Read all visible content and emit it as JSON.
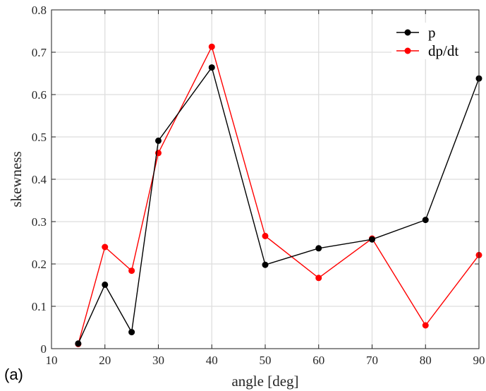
{
  "panel_label": "(a)",
  "chart_data": {
    "type": "line",
    "xlabel": "angle [deg]",
    "ylabel": "skewness",
    "xlim": [
      10,
      90
    ],
    "ylim": [
      0,
      0.8
    ],
    "xticks": [
      10,
      20,
      30,
      40,
      50,
      60,
      70,
      80,
      90
    ],
    "yticks": [
      0,
      0.1,
      0.2,
      0.3,
      0.4,
      0.5,
      0.6,
      0.7,
      0.8
    ],
    "xtick_labels": [
      "10",
      "20",
      "30",
      "40",
      "50",
      "60",
      "70",
      "80",
      "90"
    ],
    "ytick_labels": [
      "0",
      "0.1",
      "0.2",
      "0.3",
      "0.4",
      "0.5",
      "0.6",
      "0.7",
      "0.8"
    ],
    "grid": true,
    "legend_position": "top-right",
    "series": [
      {
        "name": "p",
        "color": "#000000",
        "x": [
          15,
          20,
          25,
          30,
          40,
          50,
          60,
          70,
          80,
          90
        ],
        "y": [
          0.012,
          0.151,
          0.039,
          0.491,
          0.664,
          0.198,
          0.237,
          0.258,
          0.304,
          0.638
        ]
      },
      {
        "name": "dp/dt",
        "color": "#ff0000",
        "x": [
          15,
          20,
          25,
          30,
          40,
          50,
          60,
          70,
          80,
          90
        ],
        "y": [
          0.011,
          0.24,
          0.184,
          0.462,
          0.713,
          0.266,
          0.167,
          0.26,
          0.055,
          0.221
        ]
      }
    ]
  }
}
